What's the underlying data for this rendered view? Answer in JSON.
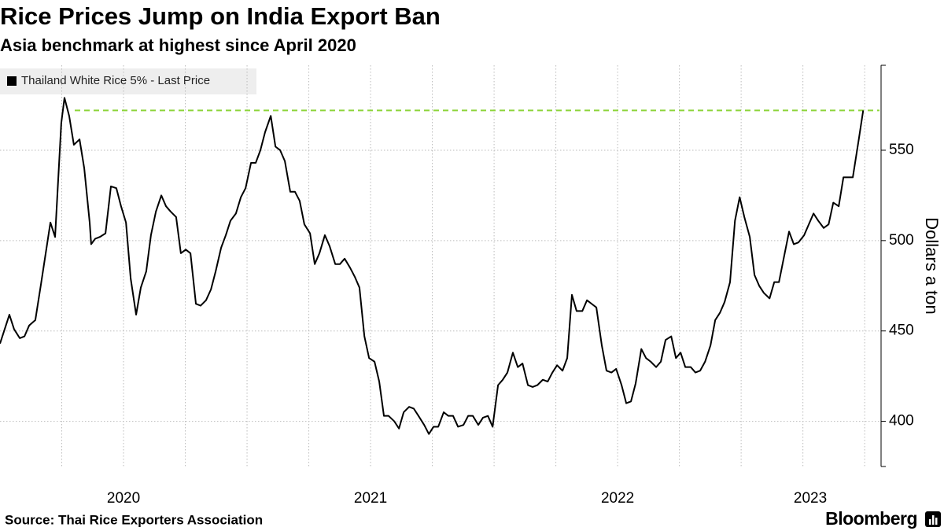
{
  "chart_data": {
    "type": "line",
    "title": "Rice Prices Jump on India Export Ban",
    "subtitle": "Asia benchmark at highest since April 2020",
    "source": "Source: Thai Rice Exporters Association",
    "brand": "Bloomberg",
    "y_label": "Dollars a ton",
    "xlim": [
      2020,
      2023.56
    ],
    "xticks": [
      2020,
      2021,
      2022,
      2023
    ],
    "minor_xticks": [
      2020.25,
      2020.5,
      2020.75,
      2021,
      2021.25,
      2021.5,
      2021.75,
      2022,
      2022.25,
      2022.5,
      2022.75,
      2023,
      2023.25,
      2023.5
    ],
    "ylim": [
      375,
      597
    ],
    "yticks": [
      400,
      450,
      500,
      550
    ],
    "grid": true,
    "reference_line": {
      "value": 572,
      "color": "#8cd43a"
    },
    "x": [
      2020.0,
      2020.038,
      2020.057,
      2020.08,
      2020.099,
      2020.118,
      2020.143,
      2020.166,
      2020.185,
      2020.204,
      2020.223,
      2020.248,
      2020.261,
      2020.28,
      2020.299,
      2020.322,
      2020.341,
      2020.363,
      2020.369,
      2020.385,
      2020.404,
      2020.427,
      2020.449,
      2020.471,
      2020.49,
      2020.51,
      2020.529,
      2020.551,
      2020.57,
      2020.592,
      2020.611,
      2020.631,
      2020.653,
      2020.672,
      2020.691,
      2020.713,
      2020.732,
      2020.752,
      2020.771,
      2020.793,
      2020.812,
      2020.834,
      2020.854,
      2020.873,
      2020.895,
      2020.914,
      2020.933,
      2020.955,
      2020.975,
      2020.994,
      2021.016,
      2021.035,
      2021.054,
      2021.073,
      2021.096,
      2021.115,
      2021.134,
      2021.153,
      2021.175,
      2021.194,
      2021.213,
      2021.232,
      2021.255,
      2021.274,
      2021.293,
      2021.315,
      2021.334,
      2021.357,
      2021.376,
      2021.395,
      2021.417,
      2021.436,
      2021.455,
      2021.475,
      2021.494,
      2021.516,
      2021.535,
      2021.554,
      2021.573,
      2021.596,
      2021.615,
      2021.634,
      2021.656,
      2021.675,
      2021.694,
      2021.717,
      2021.736,
      2021.755,
      2021.774,
      2021.796,
      2021.815,
      2021.834,
      2021.854,
      2021.876,
      2021.895,
      2021.914,
      2021.936,
      2021.955,
      2021.975,
      2021.994,
      2022.016,
      2022.035,
      2022.054,
      2022.076,
      2022.096,
      2022.115,
      2022.137,
      2022.156,
      2022.175,
      2022.197,
      2022.217,
      2022.236,
      2022.255,
      2022.277,
      2022.296,
      2022.315,
      2022.334,
      2022.357,
      2022.376,
      2022.395,
      2022.414,
      2022.436,
      2022.455,
      2022.475,
      2022.494,
      2022.516,
      2022.535,
      2022.554,
      2022.573,
      2022.596,
      2022.615,
      2022.634,
      2022.656,
      2022.675,
      2022.694,
      2022.717,
      2022.736,
      2022.755,
      2022.774,
      2022.796,
      2022.815,
      2022.834,
      2022.854,
      2022.876,
      2022.895,
      2022.914,
      2022.933,
      2022.955,
      2022.975,
      2022.994,
      2023.013,
      2023.035,
      2023.054,
      2023.073,
      2023.092,
      2023.115,
      2023.134,
      2023.153,
      2023.172,
      2023.194,
      2023.213,
      2023.232,
      2023.255,
      2023.274,
      2023.293,
      2023.312,
      2023.334,
      2023.354,
      2023.373,
      2023.395,
      2023.414,
      2023.433,
      2023.452,
      2023.475,
      2023.494
    ],
    "series": [
      {
        "name": "Thailand White Rice 5% - Last Price",
        "color": "#000000",
        "values": [
          443,
          459,
          451,
          446,
          447,
          453,
          456,
          476,
          493,
          510,
          502,
          565,
          579,
          569,
          553,
          556,
          540,
          510,
          498,
          501,
          502,
          504,
          530,
          529,
          519,
          510,
          479,
          459,
          474,
          483,
          503,
          516,
          525,
          519,
          516,
          513,
          493,
          495,
          493,
          465,
          464,
          467,
          473,
          483,
          496,
          503,
          511,
          515,
          524,
          529,
          543,
          543,
          550,
          560,
          569,
          552,
          550,
          544,
          527,
          527,
          522,
          509,
          504,
          487,
          493,
          503,
          497,
          487,
          487,
          490,
          485,
          480,
          474,
          447,
          435,
          433,
          422,
          403,
          403,
          400,
          396,
          405,
          408,
          407,
          403,
          398,
          393,
          397,
          397,
          405,
          403,
          403,
          397,
          398,
          403,
          403,
          398,
          402,
          403,
          397,
          420,
          423,
          427,
          438,
          430,
          432,
          420,
          419,
          420,
          423,
          422,
          427,
          431,
          428,
          435,
          470,
          461,
          461,
          467,
          465,
          463,
          442,
          428,
          427,
          429,
          420,
          410,
          411,
          421,
          440,
          435,
          433,
          430,
          433,
          445,
          447,
          435,
          438,
          430,
          430,
          427,
          428,
          433,
          442,
          456,
          460,
          466,
          477,
          511,
          524,
          513,
          502,
          481,
          475,
          471,
          468,
          477,
          477,
          490,
          505,
          498,
          499,
          503,
          509,
          515,
          511,
          507,
          509,
          521,
          519,
          535,
          535,
          535,
          555,
          572
        ]
      }
    ]
  }
}
